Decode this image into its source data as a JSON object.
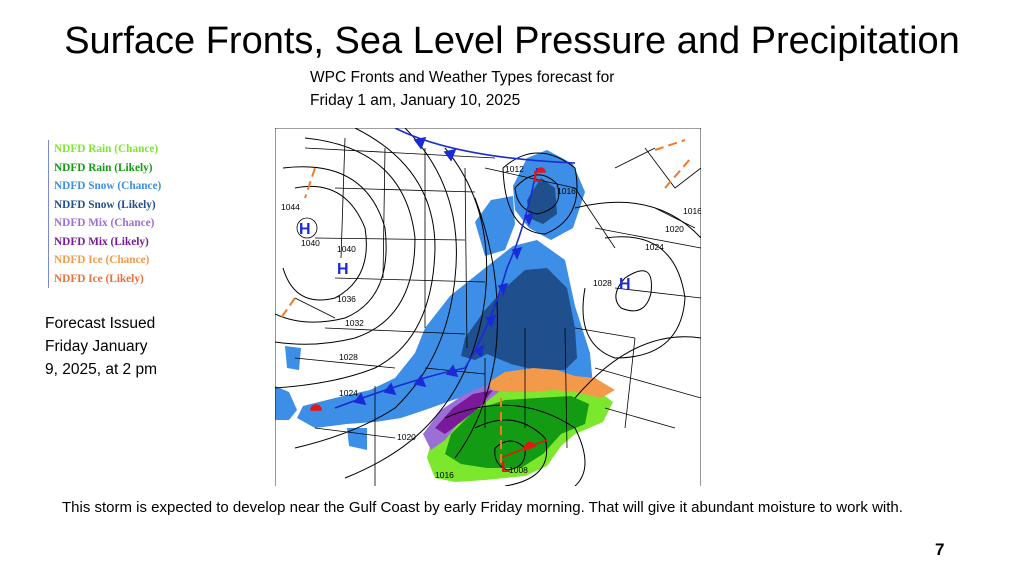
{
  "slide": {
    "title": "Surface Fronts, Sea Level Pressure and Precipitation",
    "subtitle_line1": "WPC Fronts and Weather Types forecast for",
    "subtitle_line2": "Friday 1 am, January 10, 2025",
    "issued_line1": "Forecast Issued",
    "issued_line2": "Friday January",
    "issued_line3": "9, 2025, at 2 pm",
    "caption": "This storm is expected to develop near the Gulf Coast by early Friday morning. That will give it abundant moisture to work with.",
    "page_number": "7"
  },
  "legend": [
    {
      "label": "NDFD Rain (Chance)",
      "color": "#7be82d"
    },
    {
      "label": "NDFD Rain (Likely)",
      "color": "#149b14"
    },
    {
      "label": "NDFD Snow (Chance)",
      "color": "#3c8ee6"
    },
    {
      "label": "NDFD Snow (Likely)",
      "color": "#1f4f8c"
    },
    {
      "label": "NDFD Mix (Chance)",
      "color": "#9a6fd6"
    },
    {
      "label": "NDFD Mix (Likely)",
      "color": "#7a1a9a"
    },
    {
      "label": "NDFD Ice (Chance)",
      "color": "#f39a4a"
    },
    {
      "label": "NDFD Ice (Likely)",
      "color": "#e8703a"
    }
  ],
  "map": {
    "high_symbols": [
      "H",
      "H",
      "H"
    ],
    "low_symbols": [
      "L",
      "L"
    ],
    "isobar_labels": [
      "1044",
      "1040",
      "1040",
      "1036",
      "1032",
      "1028",
      "1024",
      "1020",
      "1016",
      "1012",
      "1016",
      "1020",
      "1024",
      "1028",
      "1008",
      "1016"
    ],
    "colors": {
      "rain_chance": "#7be82d",
      "rain_likely": "#149b14",
      "snow_chance": "#3c8ee6",
      "snow_likely": "#1f4f8c",
      "mix_chance": "#9a6fd6",
      "mix_likely": "#7a1a9a",
      "ice_chance": "#f39a4a",
      "cold_front": "#1a2bd6",
      "warm_front": "#e01818",
      "high": "#1a2bd6",
      "low": "#e01818",
      "trough": "#f07a28"
    }
  }
}
